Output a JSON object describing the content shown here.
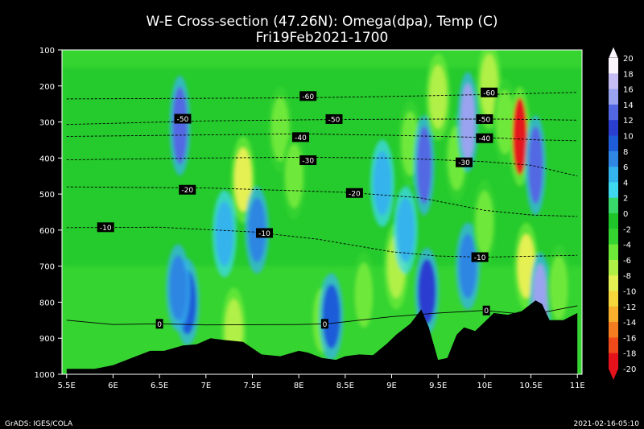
{
  "chart_data": {
    "type": "heatmap",
    "title": "W-E Cross-section (47.26N): Omega(dpa), Temp (C)",
    "subtitle": "Fri19Feb2021-1700",
    "x_tick_labels": [
      "5.5E",
      "6E",
      "6.5E",
      "7E",
      "7.5E",
      "8E",
      "8.5E",
      "9E",
      "9.5E",
      "10E",
      "10.5E",
      "11E"
    ],
    "x_tick_values": [
      5.5,
      6,
      6.5,
      7,
      7.5,
      8,
      8.5,
      9,
      9.5,
      10,
      10.5,
      11
    ],
    "xlim": [
      5.45,
      11.05
    ],
    "y_tick_labels": [
      "100",
      "200",
      "300",
      "400",
      "500",
      "600",
      "700",
      "800",
      "900",
      "1000"
    ],
    "y_tick_values": [
      100,
      200,
      300,
      400,
      500,
      600,
      700,
      800,
      900,
      1000
    ],
    "ylim": [
      100,
      1000
    ],
    "grid": false,
    "colorbar": {
      "levels": [
        "20",
        "18",
        "16",
        "14",
        "12",
        "10",
        "8",
        "6",
        "4",
        "2",
        "0",
        "-2",
        "-4",
        "-6",
        "-8",
        "-10",
        "-12",
        "-14",
        "-16",
        "-18",
        "-20"
      ],
      "colors": [
        "#faf4fc",
        "#c7bdf5",
        "#9aa3ef",
        "#5367e3",
        "#2a3ed0",
        "#1f5cd8",
        "#2f86e3",
        "#34b3ec",
        "#3fd9ef",
        "#6ee6d2",
        "#39d86a",
        "#1fc42a",
        "#35d431",
        "#6ee93a",
        "#b0f046",
        "#e5f053",
        "#f5d73c",
        "#f7af2d",
        "#f47c21",
        "#f04a1b",
        "#e5121b"
      ]
    },
    "omega_features": [
      {
        "x": 6.72,
        "p": 310,
        "value": 14
      },
      {
        "x": 6.8,
        "p": 800,
        "value": 10
      },
      {
        "x": 6.7,
        "p": 760,
        "value": 8
      },
      {
        "x": 7.2,
        "p": 610,
        "value": 6
      },
      {
        "x": 7.4,
        "p": 460,
        "value": -10
      },
      {
        "x": 7.3,
        "p": 880,
        "value": -8
      },
      {
        "x": 7.55,
        "p": 600,
        "value": 8
      },
      {
        "x": 7.8,
        "p": 320,
        "value": -6
      },
      {
        "x": 7.95,
        "p": 450,
        "value": -6
      },
      {
        "x": 8.25,
        "p": 850,
        "value": -6
      },
      {
        "x": 8.35,
        "p": 840,
        "value": 10
      },
      {
        "x": 8.7,
        "p": 780,
        "value": -6
      },
      {
        "x": 8.9,
        "p": 470,
        "value": 6
      },
      {
        "x": 9.05,
        "p": 700,
        "value": -8
      },
      {
        "x": 9.15,
        "p": 600,
        "value": 6
      },
      {
        "x": 9.2,
        "p": 360,
        "value": -6
      },
      {
        "x": 9.35,
        "p": 420,
        "value": 14
      },
      {
        "x": 9.38,
        "p": 770,
        "value": 12
      },
      {
        "x": 9.5,
        "p": 230,
        "value": -8
      },
      {
        "x": 9.7,
        "p": 400,
        "value": -6
      },
      {
        "x": 9.82,
        "p": 300,
        "value": 16
      },
      {
        "x": 9.82,
        "p": 700,
        "value": 8
      },
      {
        "x": 10.0,
        "p": 580,
        "value": -6
      },
      {
        "x": 10.05,
        "p": 200,
        "value": -8
      },
      {
        "x": 10.22,
        "p": 300,
        "value": -6
      },
      {
        "x": 10.38,
        "p": 340,
        "value": -20
      },
      {
        "x": 10.45,
        "p": 700,
        "value": -10
      },
      {
        "x": 10.55,
        "p": 420,
        "value": 14
      },
      {
        "x": 10.6,
        "p": 800,
        "value": 16
      },
      {
        "x": 10.8,
        "p": 760,
        "value": -6
      }
    ],
    "temperature_contours": [
      {
        "label": "-60",
        "points": [
          [
            5.5,
            236
          ],
          [
            8,
            233
          ],
          [
            9,
            229
          ],
          [
            10,
            224
          ],
          [
            11,
            218
          ]
        ],
        "label_positions": [
          [
            8.1,
            228
          ],
          [
            10.05,
            218
          ]
        ]
      },
      {
        "label": "-50",
        "points": [
          [
            5.5,
            307
          ],
          [
            7,
            297
          ],
          [
            8.5,
            293
          ],
          [
            9.5,
            292
          ],
          [
            10.2,
            292
          ],
          [
            11,
            295
          ]
        ],
        "label_positions": [
          [
            6.75,
            291
          ],
          [
            8.38,
            292
          ],
          [
            10.0,
            292
          ]
        ]
      },
      {
        "label": "-40",
        "points": [
          [
            5.5,
            340
          ],
          [
            8,
            333
          ],
          [
            9,
            337
          ],
          [
            10,
            343
          ],
          [
            10.6,
            350
          ],
          [
            11,
            352
          ]
        ],
        "label_positions": [
          [
            8.02,
            342
          ],
          [
            10.0,
            345
          ]
        ]
      },
      {
        "label": "-30",
        "points": [
          [
            5.5,
            405
          ],
          [
            7,
            400
          ],
          [
            8,
            398
          ],
          [
            9,
            400
          ],
          [
            10,
            410
          ],
          [
            10.5,
            420
          ],
          [
            11,
            450
          ]
        ],
        "label_positions": [
          [
            8.1,
            406
          ],
          [
            9.78,
            412
          ]
        ]
      },
      {
        "label": "-20",
        "points": [
          [
            5.5,
            480
          ],
          [
            7,
            483
          ],
          [
            8.5,
            495
          ],
          [
            9.3,
            510
          ],
          [
            10,
            545
          ],
          [
            10.5,
            558
          ],
          [
            11,
            562
          ]
        ],
        "label_positions": [
          [
            6.8,
            488
          ],
          [
            8.6,
            497
          ]
        ]
      },
      {
        "label": "-10",
        "points": [
          [
            5.5,
            593
          ],
          [
            6.5,
            592
          ],
          [
            7.5,
            605
          ],
          [
            8.2,
            625
          ],
          [
            9,
            660
          ],
          [
            9.5,
            672
          ],
          [
            10,
            675
          ],
          [
            11,
            670
          ]
        ],
        "label_positions": [
          [
            5.92,
            592
          ],
          [
            7.63,
            608
          ],
          [
            9.95,
            675
          ]
        ]
      },
      {
        "label": "0",
        "points": [
          [
            5.5,
            850
          ],
          [
            6,
            862
          ],
          [
            6.5,
            860
          ],
          [
            7,
            863
          ],
          [
            8,
            862
          ],
          [
            8.3,
            860
          ],
          [
            9,
            840
          ],
          [
            9.5,
            830
          ],
          [
            10,
            823
          ],
          [
            10.5,
            835
          ],
          [
            11,
            810
          ]
        ],
        "label_positions": [
          [
            6.5,
            860
          ],
          [
            8.28,
            860
          ],
          [
            10.02,
            823
          ]
        ]
      }
    ],
    "terrain_surface": {
      "x": [
        5.5,
        5.8,
        6.0,
        6.2,
        6.4,
        6.55,
        6.75,
        6.9,
        7.05,
        7.2,
        7.4,
        7.6,
        7.8,
        8.0,
        8.1,
        8.25,
        8.4,
        8.5,
        8.65,
        8.8,
        8.95,
        9.05,
        9.2,
        9.32,
        9.4,
        9.5,
        9.6,
        9.7,
        9.78,
        9.9,
        10.0,
        10.1,
        10.25,
        10.4,
        10.55,
        10.62,
        10.7,
        10.85,
        11.0
      ],
      "p": [
        985,
        985,
        975,
        955,
        935,
        935,
        920,
        917,
        900,
        905,
        910,
        945,
        950,
        935,
        940,
        955,
        960,
        950,
        945,
        947,
        915,
        890,
        860,
        820,
        870,
        960,
        955,
        890,
        870,
        880,
        855,
        830,
        835,
        825,
        795,
        805,
        850,
        850,
        830
      ]
    },
    "footer_left": "GrADS: IGES/COLA",
    "footer_right": "2021-02-16-05:10"
  }
}
